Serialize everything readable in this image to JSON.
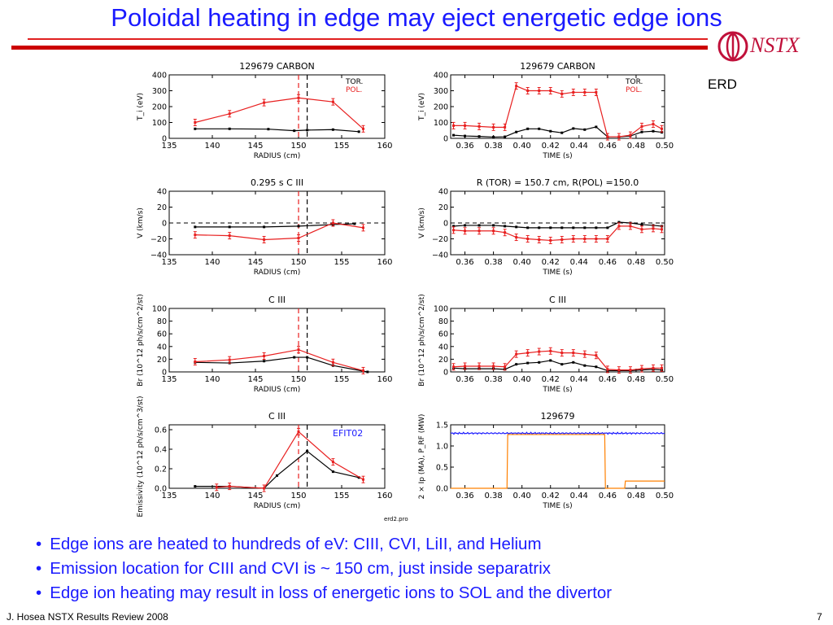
{
  "slide": {
    "title": "Poloidal heating in edge may eject energetic edge ions",
    "logo_text": "NSTX",
    "erd_label": "ERD",
    "bullets": [
      "Edge ions are heated to hundreds of eV: CIII, CVI, LiII, and Helium",
      "Emission location for CIII and CVI is ~ 150 cm, just inside separatrix",
      "Edge ion heating may result in loss of energetic ions to SOL and the divertor"
    ],
    "footer": "J. Hosea  NSTX Results Review 2008",
    "page_number": "7",
    "figure_filename": "erd2.pro",
    "colors": {
      "title": "#1a1aff",
      "tor": "#000000",
      "pol": "#e82020",
      "rf": "#1a1aff",
      "ip": "#ff8000"
    }
  },
  "chart_data": [
    {
      "type": "line",
      "title": "129679   CARBON",
      "xlabel": "RADIUS (cm)",
      "ylabel": "T_i (eV)",
      "xlim": [
        135,
        160
      ],
      "ylim": [
        0,
        400
      ],
      "xticks": [
        "135",
        "140",
        "145",
        "150",
        "155",
        "160"
      ],
      "yticks": [
        "0",
        "100",
        "200",
        "300",
        "400"
      ],
      "legend": [
        "TOR.",
        "POL."
      ],
      "vlines": [
        150,
        151
      ],
      "series": [
        {
          "name": "TOR.",
          "x": [
            138,
            142,
            146.5,
            149.5,
            151,
            154,
            157
          ],
          "y": [
            60,
            60,
            58,
            48,
            52,
            55,
            42
          ]
        },
        {
          "name": "POL.",
          "x": [
            138,
            142,
            146,
            150,
            154,
            157.5
          ],
          "y": [
            100,
            155,
            225,
            255,
            230,
            60
          ]
        }
      ]
    },
    {
      "type": "line",
      "title": "129679   CARBON",
      "xlabel": "TIME (s)",
      "ylabel": "T_i (eV)",
      "xlim": [
        0.35,
        0.5
      ],
      "ylim": [
        0,
        400
      ],
      "xticks": [
        "0.36",
        "0.38",
        "0.40",
        "0.42",
        "0.44",
        "0.46",
        "0.48",
        "0.50"
      ],
      "yticks": [
        "0",
        "100",
        "200",
        "300",
        "400"
      ],
      "legend": [
        "TOR.",
        "POL."
      ],
      "series": [
        {
          "name": "TOR.",
          "x": [
            0.352,
            0.36,
            0.37,
            0.38,
            0.388,
            0.396,
            0.404,
            0.412,
            0.42,
            0.428,
            0.436,
            0.444,
            0.452,
            0.46,
            0.468,
            0.476,
            0.484,
            0.492,
            0.498
          ],
          "y": [
            20,
            15,
            12,
            8,
            10,
            40,
            60,
            60,
            45,
            35,
            62,
            55,
            72,
            10,
            10,
            15,
            40,
            45,
            38
          ]
        },
        {
          "name": "POL.",
          "x": [
            0.352,
            0.36,
            0.37,
            0.38,
            0.388,
            0.396,
            0.404,
            0.412,
            0.42,
            0.428,
            0.436,
            0.444,
            0.452,
            0.46,
            0.468,
            0.476,
            0.484,
            0.492,
            0.498
          ],
          "y": [
            80,
            80,
            75,
            70,
            70,
            330,
            300,
            300,
            300,
            280,
            290,
            290,
            290,
            10,
            10,
            20,
            75,
            90,
            60
          ]
        }
      ]
    },
    {
      "type": "line",
      "title": "0.295 s   C III",
      "xlabel": "RADIUS (cm)",
      "ylabel": "V (km/s)",
      "xlim": [
        135,
        160
      ],
      "ylim": [
        -40,
        40
      ],
      "xticks": [
        "135",
        "140",
        "145",
        "150",
        "155",
        "160"
      ],
      "yticks": [
        "−40",
        "−20",
        "0",
        "20",
        "40"
      ],
      "vlines": [
        150,
        151
      ],
      "hline": 0,
      "series": [
        {
          "name": "TOR.",
          "x": [
            138,
            142,
            146,
            150,
            154,
            156.5
          ],
          "y": [
            -5,
            -5,
            -5,
            -4,
            -2,
            -1
          ]
        },
        {
          "name": "POL.",
          "x": [
            138,
            142,
            146,
            150,
            154,
            157.5
          ],
          "y": [
            -15,
            -16,
            -21,
            -19,
            0,
            -6
          ]
        }
      ]
    },
    {
      "type": "line",
      "title": "R (TOR) = 150.7 cm, R(POL) =150.0",
      "xlabel": "TIME (s)",
      "ylabel": "V (km/s)",
      "xlim": [
        0.35,
        0.5
      ],
      "ylim": [
        -40,
        40
      ],
      "xticks": [
        "0.36",
        "0.38",
        "0.40",
        "0.42",
        "0.44",
        "0.46",
        "0.48",
        "0.50"
      ],
      "yticks": [
        "−40",
        "−20",
        "0",
        "20",
        "40"
      ],
      "hline": 0,
      "series": [
        {
          "name": "TOR.",
          "x": [
            0.352,
            0.36,
            0.37,
            0.38,
            0.388,
            0.396,
            0.404,
            0.412,
            0.42,
            0.428,
            0.436,
            0.444,
            0.452,
            0.46,
            0.468,
            0.476,
            0.484,
            0.492,
            0.498
          ],
          "y": [
            -4,
            -3,
            -3,
            -3,
            -4,
            -5,
            -6,
            -6,
            -6,
            -6,
            -6,
            -6,
            -6,
            -6,
            1,
            0,
            -2,
            -3,
            -4
          ]
        },
        {
          "name": "POL.",
          "x": [
            0.352,
            0.36,
            0.37,
            0.38,
            0.388,
            0.396,
            0.404,
            0.412,
            0.42,
            0.428,
            0.436,
            0.444,
            0.452,
            0.46,
            0.468,
            0.476,
            0.484,
            0.492,
            0.498
          ],
          "y": [
            -9,
            -10,
            -10,
            -10,
            -12,
            -18,
            -20,
            -21,
            -22,
            -21,
            -20,
            -20,
            -20,
            -20,
            -4,
            -4,
            -8,
            -7,
            -8
          ]
        }
      ]
    },
    {
      "type": "line",
      "title": "C  III",
      "xlabel": "RADIUS (cm)",
      "ylabel": "Br  (10^12 ph/s/cm^2/st)",
      "xlim": [
        135,
        160
      ],
      "ylim": [
        0,
        100
      ],
      "xticks": [
        "135",
        "140",
        "145",
        "150",
        "155",
        "160"
      ],
      "yticks": [
        "0",
        "20",
        "40",
        "60",
        "80",
        "100"
      ],
      "vlines": [
        150,
        151
      ],
      "series": [
        {
          "name": "TOR.",
          "x": [
            138,
            142,
            146,
            149.5,
            151,
            154,
            158
          ],
          "y": [
            15,
            14,
            17,
            23,
            23,
            10,
            0
          ]
        },
        {
          "name": "POL.",
          "x": [
            138,
            142,
            146,
            150,
            154,
            157.5
          ],
          "y": [
            16,
            19,
            25,
            35,
            15,
            2
          ]
        }
      ]
    },
    {
      "type": "line",
      "title": "C  III",
      "xlabel": "TIME (s)",
      "ylabel": "Br  (10^12 ph/s/cm^2/st)",
      "xlim": [
        0.35,
        0.5
      ],
      "ylim": [
        0,
        100
      ],
      "xticks": [
        "0.36",
        "0.38",
        "0.40",
        "0.42",
        "0.44",
        "0.46",
        "0.48",
        "0.50"
      ],
      "yticks": [
        "0",
        "20",
        "40",
        "60",
        "80",
        "100"
      ],
      "series": [
        {
          "name": "TOR.",
          "x": [
            0.352,
            0.36,
            0.37,
            0.38,
            0.388,
            0.396,
            0.404,
            0.412,
            0.42,
            0.428,
            0.436,
            0.444,
            0.452,
            0.46,
            0.468,
            0.476,
            0.484,
            0.492,
            0.498
          ],
          "y": [
            6,
            5,
            5,
            5,
            4,
            12,
            14,
            15,
            18,
            12,
            15,
            10,
            8,
            2,
            2,
            2,
            3,
            4,
            3
          ]
        },
        {
          "name": "POL.",
          "x": [
            0.352,
            0.36,
            0.37,
            0.38,
            0.388,
            0.396,
            0.404,
            0.412,
            0.42,
            0.428,
            0.436,
            0.444,
            0.452,
            0.46,
            0.468,
            0.476,
            0.484,
            0.492,
            0.498
          ],
          "y": [
            8,
            9,
            9,
            9,
            8,
            28,
            30,
            32,
            33,
            30,
            30,
            28,
            26,
            4,
            3,
            3,
            5,
            6,
            6
          ]
        }
      ]
    },
    {
      "type": "line",
      "title": "C  III",
      "annotation": "EFIT02",
      "xlabel": "RADIUS (cm)",
      "ylabel": "Emissivity  (10^12 ph/s/cm^3/st)",
      "xlim": [
        135,
        160
      ],
      "ylim": [
        0,
        0.65
      ],
      "xticks": [
        "135",
        "140",
        "145",
        "150",
        "155",
        "160"
      ],
      "yticks": [
        "0.0",
        "0.2",
        "0.4",
        "0.6"
      ],
      "vlines": [
        150,
        151
      ],
      "series": [
        {
          "name": "TOR.",
          "x": [
            138,
            142,
            146,
            147.5,
            151,
            154,
            157
          ],
          "y": [
            0.02,
            0.02,
            0.0,
            0.13,
            0.38,
            0.17,
            0.11
          ]
        },
        {
          "name": "POL.",
          "x": [
            140.5,
            142,
            146,
            150,
            154,
            157.5
          ],
          "y": [
            0.01,
            0.02,
            0.0,
            0.58,
            0.27,
            0.09
          ]
        }
      ]
    },
    {
      "type": "line",
      "title": "129679",
      "xlabel": "TIME (s)",
      "ylabel": "2 × Ip (MA),  P_RF (MW)",
      "xlim": [
        0.35,
        0.5
      ],
      "ylim": [
        0,
        1.5
      ],
      "xticks": [
        "0.36",
        "0.38",
        "0.40",
        "0.42",
        "0.44",
        "0.46",
        "0.48",
        "0.50"
      ],
      "yticks": [
        "0.0",
        "0.5",
        "1.0",
        "1.5"
      ],
      "series": [
        {
          "name": "P_RF",
          "x": [
            0.35,
            0.5
          ],
          "y": [
            1.3,
            1.3
          ]
        },
        {
          "name": "2 x Ip",
          "x": [
            0.35,
            0.3895,
            0.39,
            0.458,
            0.4585,
            0.472,
            0.4725,
            0.5
          ],
          "y": [
            0.0,
            0.0,
            1.27,
            1.27,
            0.0,
            0.0,
            0.17,
            0.17
          ]
        }
      ]
    }
  ]
}
